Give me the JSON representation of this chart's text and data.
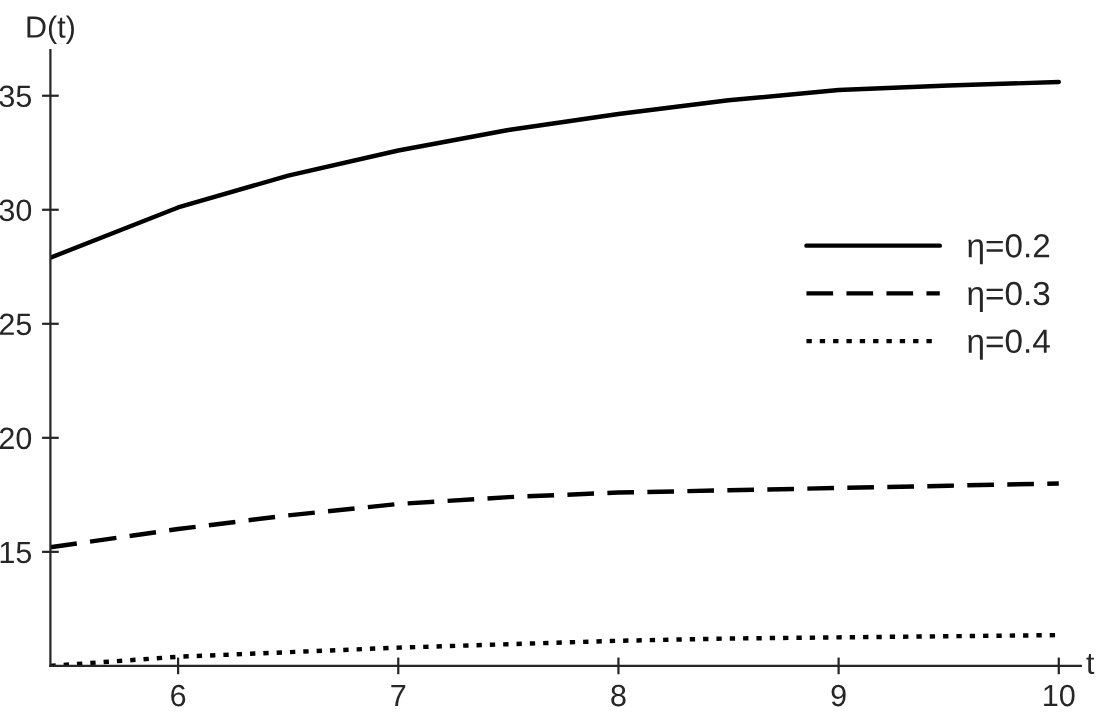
{
  "chart_data": {
    "type": "line",
    "xlabel": "t",
    "ylabel": "D(t)",
    "x": [
      5.42,
      6,
      6.5,
      7,
      7.5,
      8,
      8.5,
      9,
      9.5,
      10
    ],
    "series": [
      {
        "name": "η=0.2",
        "color": "#000000",
        "line_style": "solid",
        "values": [
          27.9,
          30.1,
          31.5,
          32.6,
          33.5,
          34.2,
          34.8,
          35.25,
          35.45,
          35.6
        ]
      },
      {
        "name": "η=0.3",
        "color": "#000000",
        "line_style": "dashed",
        "values": [
          15.2,
          16.0,
          16.6,
          17.1,
          17.4,
          17.6,
          17.7,
          17.8,
          17.9,
          18.0
        ]
      },
      {
        "name": "η=0.4",
        "color": "#000000",
        "line_style": "dotted",
        "values": [
          10.0,
          10.4,
          10.6,
          10.8,
          10.95,
          11.1,
          11.2,
          11.25,
          11.3,
          11.35
        ]
      }
    ],
    "xlim": [
      5.42,
      10.1
    ],
    "ylim": [
      10,
      37
    ],
    "xticks": [
      6,
      7,
      8,
      9,
      10
    ],
    "yticks": [
      15,
      20,
      25,
      30,
      35
    ],
    "grid": false,
    "legend": "right",
    "marker": "none"
  }
}
